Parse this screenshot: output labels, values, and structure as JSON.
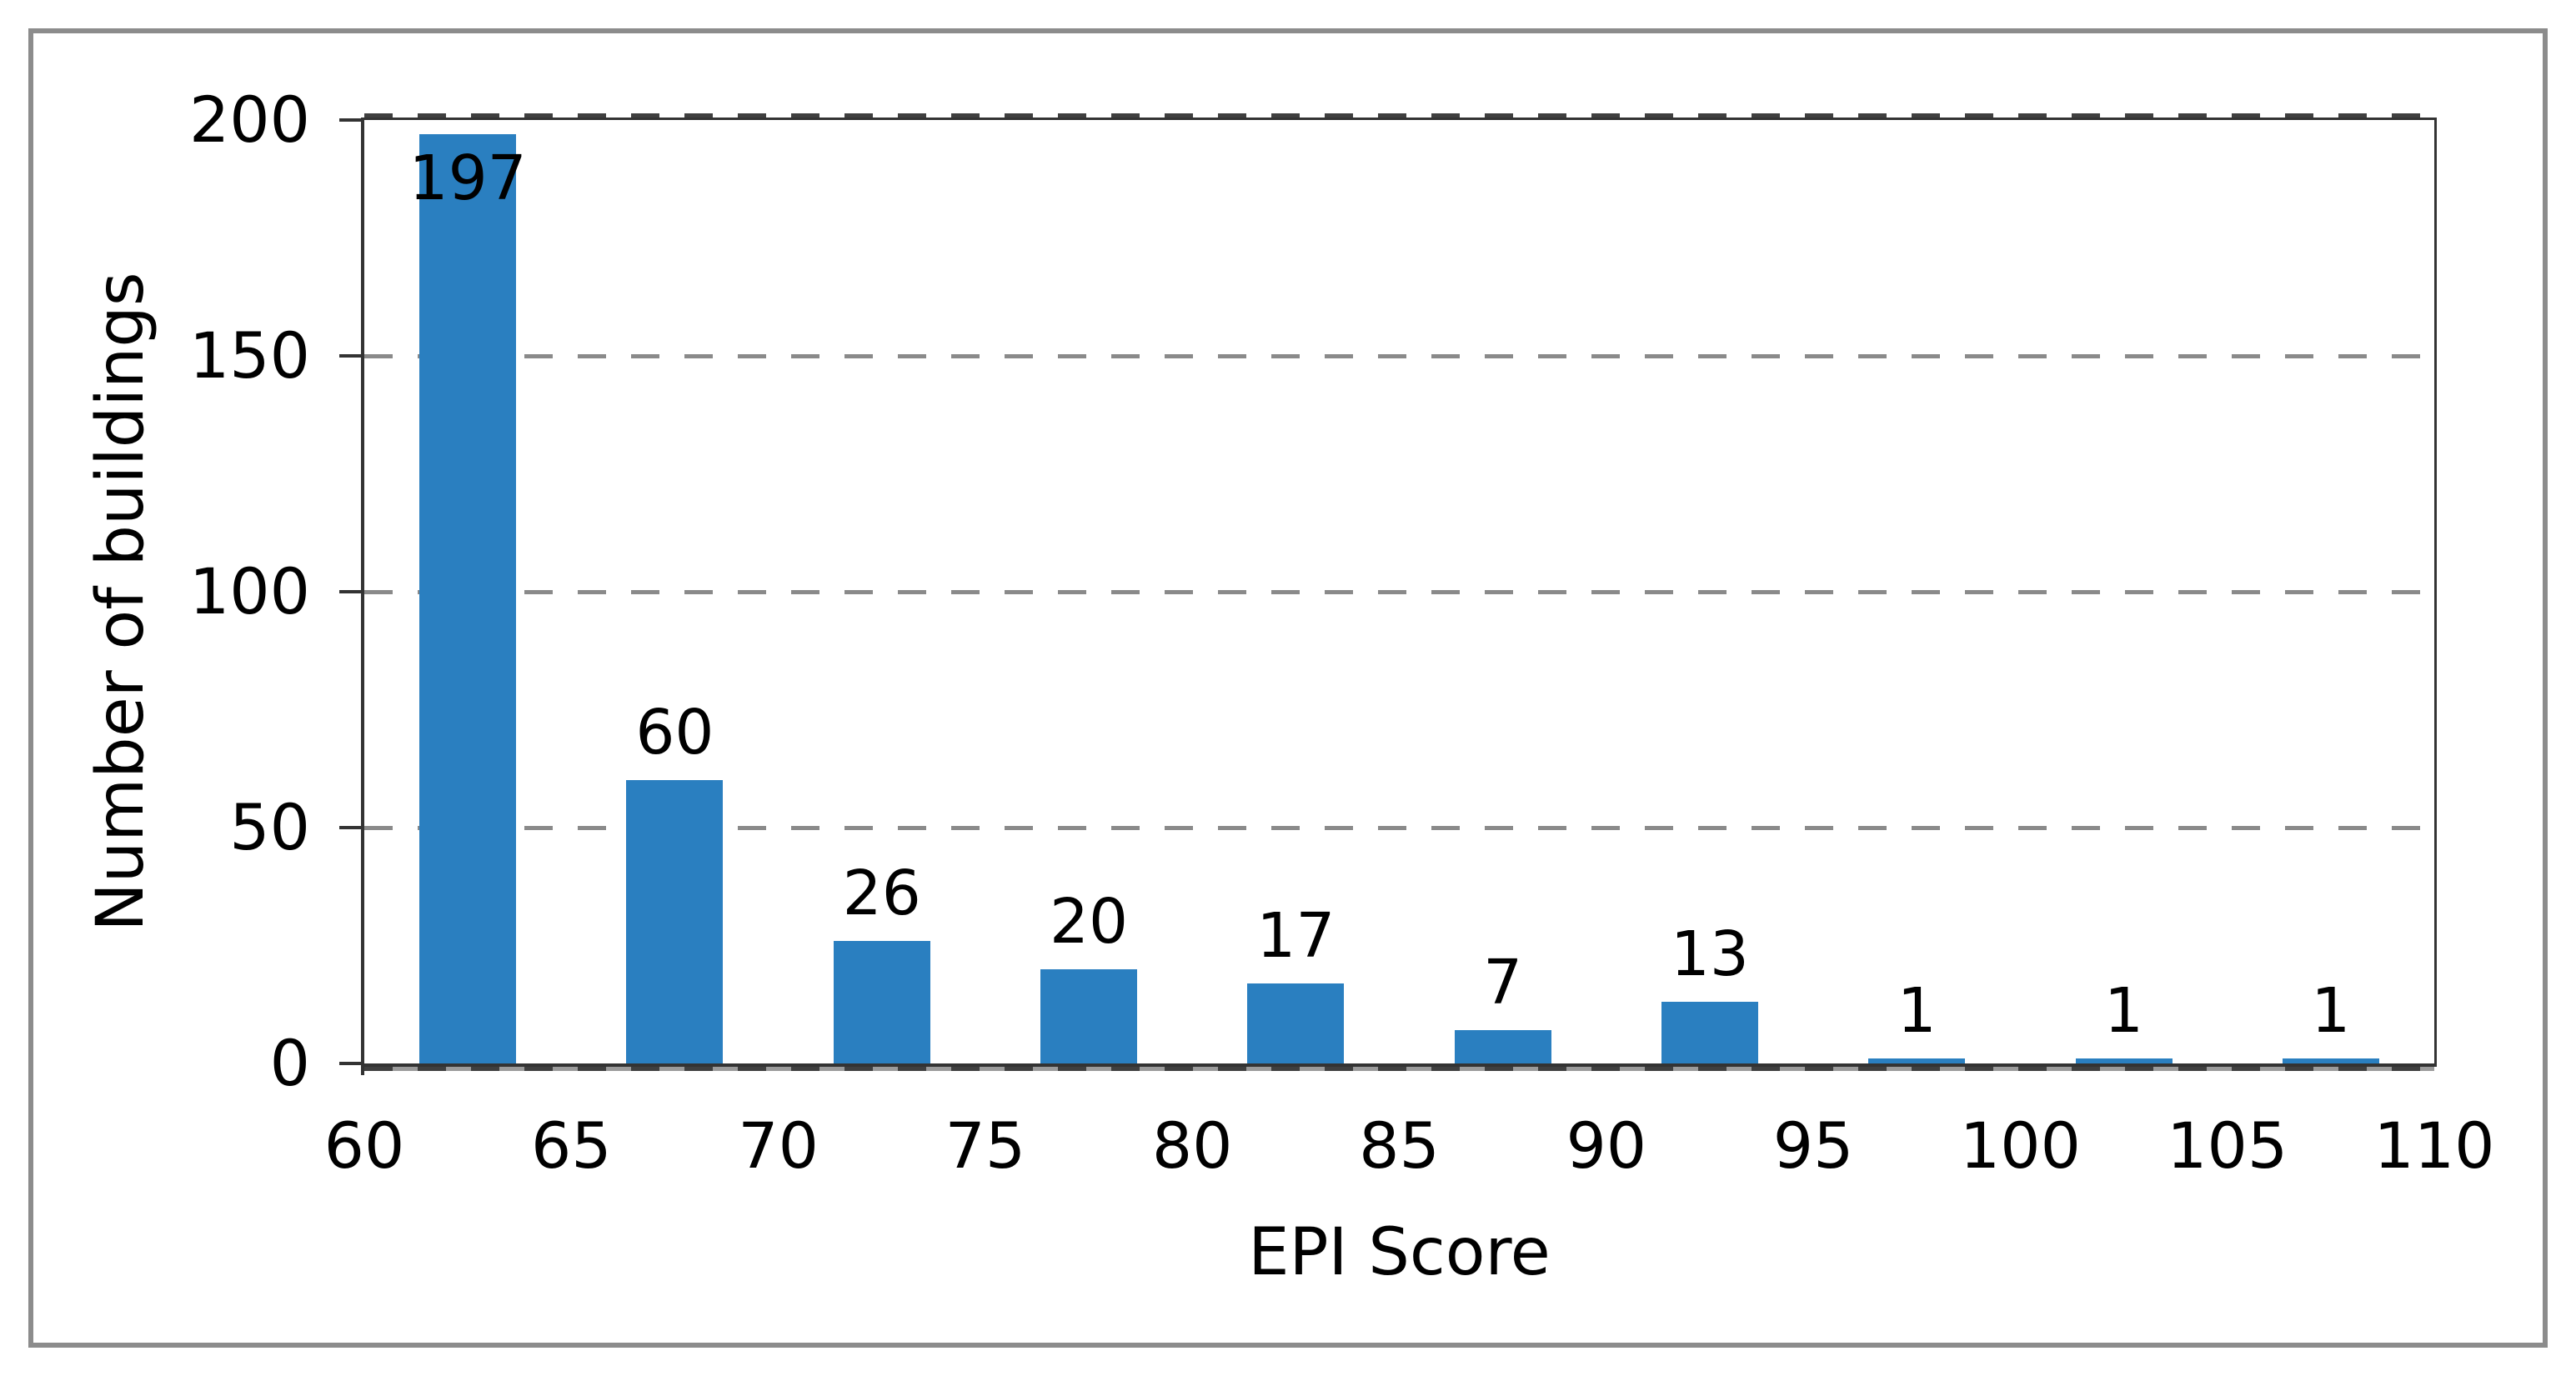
{
  "frame": {
    "border_color": "#8c8c8c",
    "background": "#ffffff"
  },
  "chart_data": {
    "type": "bar",
    "title": "",
    "xlabel": "EPI Score",
    "ylabel": "Number of buildings",
    "categories": [
      "60-65",
      "65-70",
      "70-75",
      "75-80",
      "80-85",
      "85-90",
      "90-95",
      "95-100",
      "100-105",
      "105-110"
    ],
    "values": [
      197,
      60,
      26,
      20,
      17,
      7,
      13,
      1,
      1,
      1
    ],
    "data_labels": [
      "197",
      "60",
      "26",
      "20",
      "17",
      "7",
      "13",
      "1",
      "1",
      "1"
    ],
    "x_ticks": [
      60,
      65,
      70,
      75,
      80,
      85,
      90,
      95,
      100,
      105,
      110
    ],
    "y_ticks": [
      0,
      50,
      100,
      150,
      200
    ],
    "xlim": [
      60,
      110
    ],
    "ylim": [
      0,
      200
    ],
    "grid": "horizontal-dashed",
    "legend": "none",
    "bar_color": "#2a7fc0",
    "gridline_color": "#8a8a8a",
    "axis_color": "#333333",
    "text_color": "#000000"
  }
}
